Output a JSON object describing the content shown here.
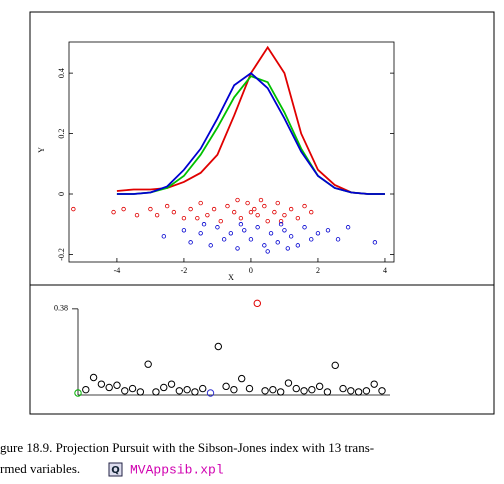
{
  "chart_data": [
    {
      "type": "line",
      "xlabel": "X",
      "ylabel": "Y",
      "xlim": [
        -5.43,
        4.27
      ],
      "ylim": [
        -0.225,
        0.503
      ],
      "xticks": [
        -4,
        -2,
        0,
        2,
        4
      ],
      "yticks": [
        -0.2,
        0,
        0.2,
        0.4
      ],
      "x": [
        -4,
        -3.5,
        -3,
        -2.5,
        -2,
        -1.5,
        -1,
        -0.5,
        0,
        0.5,
        1,
        1.5,
        2,
        2.5,
        3,
        3.5,
        4
      ],
      "series": [
        {
          "color": "#e00000",
          "values": [
            0.01,
            0.015,
            0.015,
            0.02,
            0.04,
            0.07,
            0.13,
            0.26,
            0.4,
            0.485,
            0.4,
            0.2,
            0.08,
            0.03,
            0.005,
            0,
            0
          ]
        },
        {
          "color": "#00c000",
          "values": [
            0,
            0,
            0.005,
            0.02,
            0.06,
            0.13,
            0.22,
            0.32,
            0.39,
            0.37,
            0.27,
            0.15,
            0.06,
            0.02,
            0.005,
            0,
            0
          ]
        },
        {
          "color": "#0000d0",
          "values": [
            0,
            0,
            0.005,
            0.025,
            0.08,
            0.15,
            0.25,
            0.36,
            0.4,
            0.35,
            0.25,
            0.14,
            0.06,
            0.02,
            0.005,
            0,
            0
          ]
        }
      ],
      "scatter_series": [
        {
          "color": "#e00000",
          "x": [
            -5.3,
            -4.1,
            -3.8,
            -3.4,
            -3.0,
            -2.8,
            -2.5,
            -2.3,
            -2.0,
            -1.8,
            -1.5,
            -1.3,
            -1.1,
            -0.9,
            -0.7,
            -0.5,
            -0.3,
            -0.1,
            0.1,
            0.2,
            0.4,
            0.5,
            0.7,
            0.8,
            1.0,
            1.2,
            1.4,
            1.6,
            1.8,
            0.3,
            -0.4,
            0.9,
            -1.6,
            0.0
          ],
          "y": [
            -0.05,
            -0.06,
            -0.05,
            -0.07,
            -0.05,
            -0.07,
            -0.04,
            -0.06,
            -0.08,
            -0.05,
            -0.03,
            -0.07,
            -0.05,
            -0.09,
            -0.04,
            -0.06,
            -0.08,
            -0.03,
            -0.05,
            -0.07,
            -0.04,
            -0.09,
            -0.06,
            -0.03,
            -0.07,
            -0.05,
            -0.08,
            -0.04,
            -0.06,
            -0.02,
            -0.02,
            -0.09,
            -0.08,
            -0.06
          ]
        },
        {
          "color": "#0000d0",
          "x": [
            -2.6,
            -2.0,
            -1.8,
            -1.5,
            -1.2,
            -1.0,
            -0.8,
            -0.6,
            -0.4,
            -0.2,
            0.0,
            0.2,
            0.4,
            0.6,
            0.8,
            1.0,
            1.2,
            1.4,
            1.6,
            1.8,
            2.0,
            2.3,
            2.6,
            2.9,
            3.7,
            -0.3,
            0.5,
            1.1,
            -1.4,
            0.9
          ],
          "y": [
            -0.14,
            -0.12,
            -0.16,
            -0.13,
            -0.17,
            -0.11,
            -0.15,
            -0.13,
            -0.18,
            -0.12,
            -0.15,
            -0.11,
            -0.17,
            -0.13,
            -0.16,
            -0.12,
            -0.14,
            -0.17,
            -0.11,
            -0.15,
            -0.13,
            -0.12,
            -0.15,
            -0.11,
            -0.16,
            -0.1,
            -0.19,
            -0.18,
            -0.1,
            -0.1
          ]
        }
      ]
    },
    {
      "type": "scatter",
      "xlim": [
        0,
        39
      ],
      "ylim": [
        0,
        0.42
      ],
      "yticks": [
        0.38
      ],
      "x": [
        0,
        1,
        2,
        3,
        4,
        5,
        6,
        7,
        8,
        9,
        10,
        11,
        12,
        13,
        14,
        15,
        16,
        17,
        18,
        19,
        20,
        21,
        22,
        23,
        24,
        25,
        26,
        27,
        28,
        29,
        30,
        31,
        32,
        33,
        34,
        35,
        36,
        37,
        38,
        39
      ],
      "values": [
        0.0,
        0.015,
        0.07,
        0.04,
        0.025,
        0.035,
        0.01,
        0.02,
        0.005,
        0.13,
        0.005,
        0.025,
        0.04,
        0.01,
        0.015,
        0.005,
        0.02,
        0.0,
        0.21,
        0.03,
        0.015,
        0.065,
        0.02,
        0.405,
        0.01,
        0.015,
        0.005,
        0.045,
        0.02,
        0.01,
        0.015,
        0.03,
        0.005,
        0.125,
        0.02,
        0.01,
        0.005,
        0.01,
        0.04,
        0.01
      ],
      "point_colors": [
        "#00b000",
        "#000",
        "#000",
        "#000",
        "#000",
        "#000",
        "#000",
        "#000",
        "#000",
        "#000",
        "#000",
        "#000",
        "#000",
        "#000",
        "#000",
        "#000",
        "#000",
        "#3030d0",
        "#000",
        "#000",
        "#000",
        "#000",
        "#000",
        "#e00000",
        "#000",
        "#000",
        "#000",
        "#000",
        "#000",
        "#000",
        "#000",
        "#000",
        "#000",
        "#000",
        "#000",
        "#000",
        "#000",
        "#000",
        "#000",
        "#000"
      ]
    }
  ],
  "caption": {
    "line1": "gure 18.9. Projection Pursuit with the Sibson-Jones index with 13 trans-",
    "line2": "rmed variables.",
    "icon": "Q",
    "link": "MVAppsib.xpl"
  }
}
